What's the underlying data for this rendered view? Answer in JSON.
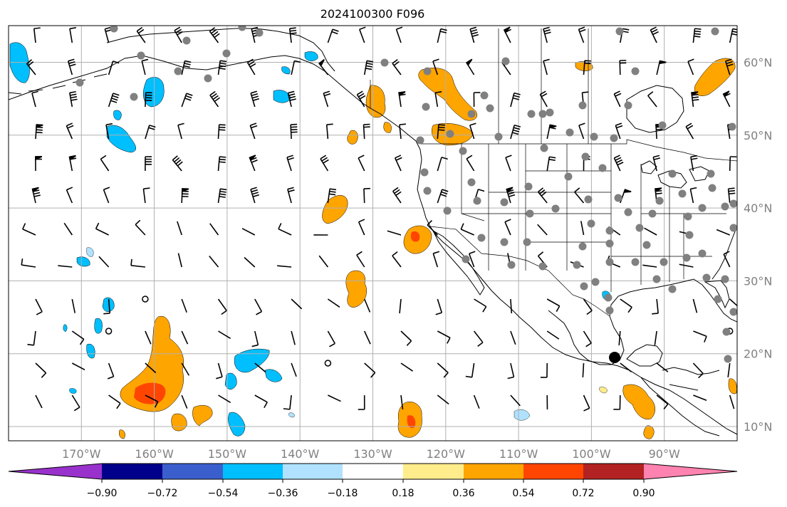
{
  "title": "2024100300 F096",
  "map": {
    "lon_ticks": [
      "170°W",
      "160°W",
      "150°W",
      "140°W",
      "130°W",
      "120°W",
      "110°W",
      "100°W",
      "90°W"
    ],
    "lat_ticks": [
      "60°N",
      "50°N",
      "40°N",
      "30°N",
      "20°N",
      "10°N"
    ],
    "grid": true,
    "coastline_color": "#000000",
    "grid_color": "#b0b0b0"
  },
  "colorbar": {
    "colors": [
      "#9932cc",
      "#00008b",
      "#3a5fcd",
      "#00bfff",
      "#b0e2ff",
      "#ffffff",
      "#ffec8b",
      "#ffa500",
      "#ff4500",
      "#b22222",
      "#ff83b0"
    ],
    "tick_labels": [
      "−0.90",
      "−0.72",
      "−0.54",
      "−0.36",
      "−0.18",
      "0.18",
      "0.36",
      "0.54",
      "0.72",
      "0.90"
    ]
  }
}
